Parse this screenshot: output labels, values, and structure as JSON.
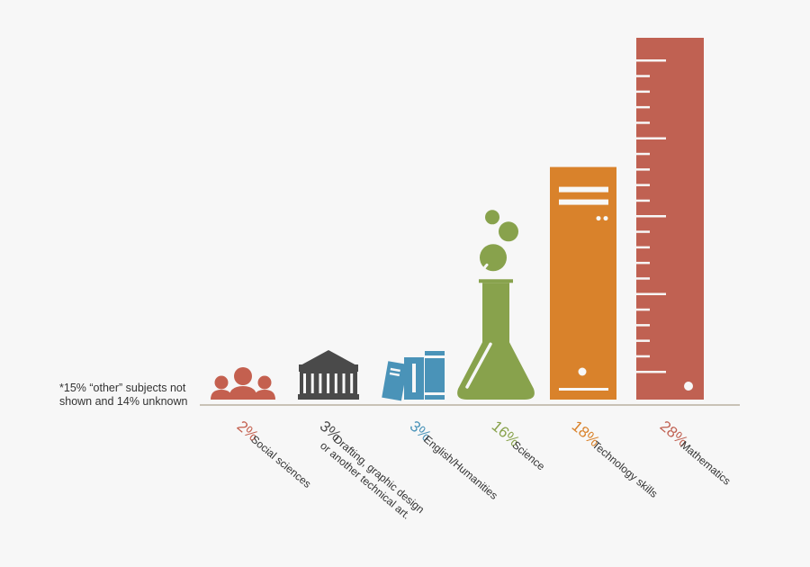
{
  "chart_data": {
    "type": "bar",
    "title": "",
    "xlabel": "",
    "ylabel": "",
    "ylim": [
      0,
      28
    ],
    "grid": false,
    "legend": "none",
    "categories": [
      {
        "label_lines": [
          "Social sciences"
        ],
        "value": 2,
        "value_label": "2%",
        "color": "#c4604f",
        "icon": "people-icon"
      },
      {
        "label_lines": [
          "Drafting, graphic design",
          "or another technical art."
        ],
        "value": 3,
        "value_label": "3%",
        "color": "#4a4a4a",
        "icon": "gazebo-icon"
      },
      {
        "label_lines": [
          "English/Humanities"
        ],
        "value": 3,
        "value_label": "3%",
        "color": "#4a93b8",
        "icon": "books-icon"
      },
      {
        "label_lines": [
          "Science"
        ],
        "value": 16,
        "value_label": "16%",
        "color": "#88a24c",
        "icon": "flask-icon"
      },
      {
        "label_lines": [
          "Technology skills"
        ],
        "value": 18,
        "value_label": "18%",
        "color": "#d9822b",
        "icon": "computer-tower-icon"
      },
      {
        "label_lines": [
          "Mathematics"
        ],
        "value": 28,
        "value_label": "28%",
        "color": "#c06152",
        "icon": "ruler-icon"
      }
    ],
    "annotations": {
      "note_line1": "*15% “other” subjects not",
      "note_line2": "shown and 14% unknown"
    }
  }
}
